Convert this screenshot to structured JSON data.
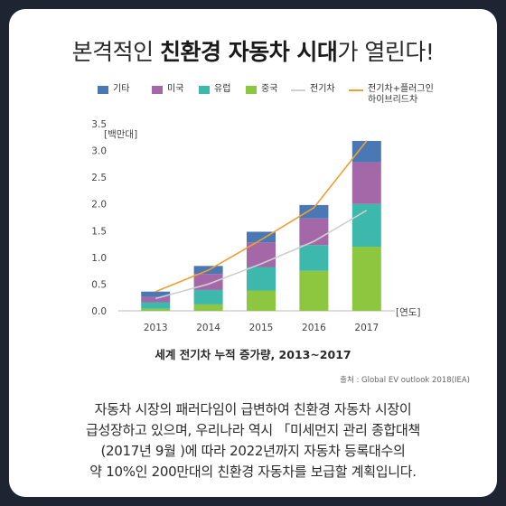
{
  "headline": {
    "before": "본격적인 ",
    "bold": "친환경 자동차 시대",
    "after": "가 열린다!"
  },
  "legend": [
    {
      "label": "기타",
      "color": "#4a78b5",
      "kind": "bar"
    },
    {
      "label": "미국",
      "color": "#a467a8",
      "kind": "bar"
    },
    {
      "label": "유럽",
      "color": "#3db8ac",
      "kind": "bar"
    },
    {
      "label": "중국",
      "color": "#8dc63f",
      "kind": "bar"
    },
    {
      "label": "전기차",
      "color": "#cfcfcf",
      "kind": "line"
    },
    {
      "label": "전기차+플러그인",
      "label2": "하이브리드차",
      "color": "#f0a032",
      "kind": "line"
    }
  ],
  "chart_data": {
    "type": "bar",
    "stacked": true,
    "title": "세계 전기차 누적 증가량, 2013~2017",
    "ylabel": "[백만대]",
    "xlabel": "[연도]",
    "categories": [
      "2013",
      "2014",
      "2015",
      "2016",
      "2017"
    ],
    "ylim": [
      0,
      3.5
    ],
    "yticks": [
      "0.0",
      "0.5",
      "1.0",
      "1.5",
      "2.0",
      "2.5",
      "3.0",
      "3.5"
    ],
    "series": [
      {
        "name": "중국",
        "color": "#8dc63f",
        "values": [
          0.04,
          0.12,
          0.38,
          0.75,
          1.2
        ]
      },
      {
        "name": "유럽",
        "color": "#3db8ac",
        "values": [
          0.12,
          0.27,
          0.44,
          0.48,
          0.8
        ]
      },
      {
        "name": "미국",
        "color": "#a467a8",
        "values": [
          0.1,
          0.3,
          0.46,
          0.5,
          0.78
        ]
      },
      {
        "name": "기타",
        "color": "#4a78b5",
        "values": [
          0.1,
          0.15,
          0.2,
          0.25,
          0.4
        ]
      }
    ],
    "lines": [
      {
        "name": "전기차",
        "color": "#cfcfcf",
        "values": [
          0.23,
          0.5,
          0.88,
          1.3,
          1.88
        ]
      },
      {
        "name": "전기차+플러그인 하이브리드차",
        "color": "#f0a032",
        "values": [
          0.36,
          0.76,
          1.33,
          1.93,
          3.18
        ]
      }
    ]
  },
  "source": "출처 : Global EV outlook 2018(IEA)",
  "body": [
    "자동차 시장의 패러다임이 급변하여 친환경 자동차 시장이",
    "급성장하고 있으며, 우리나라 역시 「미세먼지 관리 종합대책",
    "(2017년 9월 )에 따라 2022년까지 자동차 등록대수의",
    "약 10%인 200만대의 친환경 자동차를 보급할 계획입니다."
  ]
}
